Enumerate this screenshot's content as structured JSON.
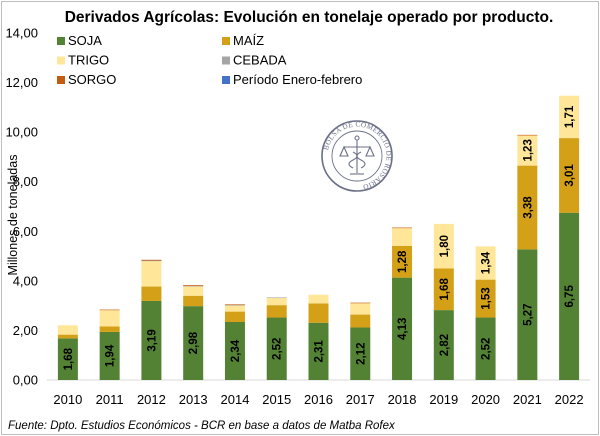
{
  "chart_data": {
    "type": "bar",
    "stacked": true,
    "title": "Derivados Agrícolas: Evolución en tonelaje operado por producto.",
    "ylabel": "Millones de toneladas",
    "xlabel": "",
    "ylim": [
      0,
      14
    ],
    "yticks": [
      "0,00",
      "2,00",
      "4,00",
      "6,00",
      "8,00",
      "10,00",
      "12,00",
      "14,00"
    ],
    "categories": [
      "2010",
      "2011",
      "2012",
      "2013",
      "2014",
      "2015",
      "2016",
      "2017",
      "2018",
      "2019",
      "2020",
      "2021",
      "2022"
    ],
    "series": [
      {
        "name": "SOJA",
        "color": "#548235",
        "values": [
          1.68,
          1.94,
          3.19,
          2.98,
          2.34,
          2.52,
          2.31,
          2.12,
          4.13,
          2.82,
          2.52,
          5.27,
          6.75
        ],
        "labels": [
          "1,68",
          "1,94",
          "3,19",
          "2,98",
          "2,34",
          "2,52",
          "2,31",
          "2,12",
          "4,13",
          "2,82",
          "2,52",
          "5,27",
          "6,75"
        ]
      },
      {
        "name": "MAÍZ",
        "color": "#d4a017",
        "values": [
          0.15,
          0.22,
          0.58,
          0.42,
          0.42,
          0.5,
          0.78,
          0.52,
          1.28,
          1.68,
          1.53,
          3.38,
          3.01
        ],
        "labels": [
          "",
          "",
          "",
          "",
          "",
          "",
          "",
          "",
          "1,28",
          "1,68",
          "1,53",
          "3,38",
          "3,01"
        ]
      },
      {
        "name": "TRIGO",
        "color": "#ffe699",
        "values": [
          0.38,
          0.66,
          1.03,
          0.38,
          0.26,
          0.3,
          0.35,
          0.46,
          0.72,
          1.8,
          1.34,
          1.23,
          1.71
        ],
        "labels": [
          "",
          "",
          "",
          "",
          "",
          "",
          "",
          "",
          "",
          "1,80",
          "1,34",
          "1,23",
          "1,71"
        ]
      },
      {
        "name": "CEBADA",
        "color": "#a5a5a5",
        "values": [
          0,
          0,
          0.02,
          0.02,
          0.01,
          0.01,
          0,
          0,
          0,
          0,
          0,
          0,
          0
        ],
        "labels": [
          "",
          "",
          "",
          "",
          "",
          "",
          "",
          "",
          "",
          "",
          "",
          "",
          ""
        ]
      },
      {
        "name": "SORGO",
        "color": "#c55a11",
        "values": [
          0,
          0.02,
          0.03,
          0.03,
          0.02,
          0,
          0,
          0.02,
          0.02,
          0,
          0,
          0.01,
          0
        ],
        "labels": [
          "",
          "",
          "",
          "",
          "",
          "",
          "",
          "",
          "",
          "",
          "",
          "",
          ""
        ]
      },
      {
        "name": "Período Enero-febrero",
        "color": "#4472c4",
        "values": [
          0,
          0,
          0,
          0,
          0,
          0,
          0,
          0,
          0,
          0,
          0,
          0,
          0
        ],
        "labels": [
          "",
          "",
          "",
          "",
          "",
          "",
          "",
          "",
          "",
          "",
          "",
          "",
          ""
        ]
      }
    ],
    "legend": {
      "placement": "top-left",
      "columns": 2
    },
    "grid": false
  },
  "source": "Fuente: Dpto. Estudios Económicos - BCR en base a datos de Matba Rofex",
  "logo": {
    "text": "BOLSA DE COMERCIO DE ROSARIO",
    "color": "#6b7088"
  }
}
